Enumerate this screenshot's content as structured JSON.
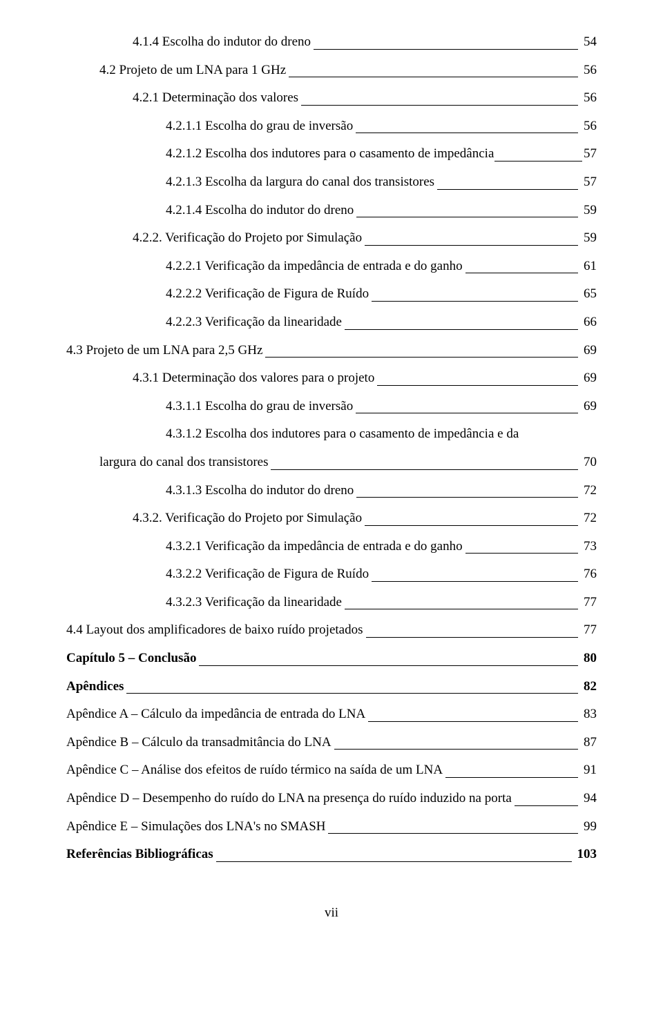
{
  "typography": {
    "font_family": "Times New Roman",
    "font_size_pt": 12,
    "line_color": "#000000",
    "text_color": "#000000",
    "background_color": "#ffffff"
  },
  "footer": {
    "page_number": "vii"
  },
  "entries": [
    {
      "label": "4.1.4 Escolha do indutor do dreno",
      "page": "54",
      "indent": 3,
      "bold": false
    },
    {
      "label": "4.2 Projeto de um LNA para 1 GHz",
      "page": "56",
      "indent": 2,
      "bold": false
    },
    {
      "label": "4.2.1 Determinação dos valores",
      "page": "56",
      "indent": 3,
      "bold": false
    },
    {
      "label": "4.2.1.1 Escolha do grau de inversão",
      "page": "56",
      "indent": 4,
      "bold": false
    },
    {
      "label": "4.2.1.2 Escolha dos indutores para o casamento de impedância",
      "page": "57",
      "indent": 4,
      "bold": false,
      "tight": true
    },
    {
      "label": "4.2.1.3 Escolha da largura do canal dos transistores",
      "page": "57",
      "indent": 4,
      "bold": false
    },
    {
      "label": "4.2.1.4 Escolha do indutor do dreno",
      "page": "59",
      "indent": 4,
      "bold": false
    },
    {
      "label": "4.2.2. Verificação do Projeto por Simulação",
      "page": "59",
      "indent": 3,
      "bold": false
    },
    {
      "label": "4.2.2.1 Verificação da impedância de entrada e do ganho",
      "page": "61",
      "indent": 4,
      "bold": false
    },
    {
      "label": "4.2.2.2 Verificação de Figura de Ruído",
      "page": "65",
      "indent": 4,
      "bold": false
    },
    {
      "label": "4.2.2.3 Verificação da linearidade",
      "page": "66",
      "indent": 4,
      "bold": false
    },
    {
      "label": "4.3 Projeto de um LNA para 2,5 GHz",
      "page": "69",
      "indent": 1,
      "bold": false
    },
    {
      "label": "4.3.1 Determinação dos valores para o projeto",
      "page": "69",
      "indent": 3,
      "bold": false
    },
    {
      "label": "4.3.1.1 Escolha do grau de inversão",
      "page": "69",
      "indent": 4,
      "bold": false
    },
    {
      "label_pre": "4.3.1.2 Escolha dos indutores para o casamento de impedância e da",
      "label": "largura do canal dos transistores",
      "page": "70",
      "indent": 4,
      "indent_cont": 2,
      "wrap": true,
      "bold": false
    },
    {
      "label": "4.3.1.3 Escolha do indutor do dreno",
      "page": "72",
      "indent": 4,
      "bold": false
    },
    {
      "label": "4.3.2. Verificação do Projeto por Simulação",
      "page": "72",
      "indent": 3,
      "bold": false
    },
    {
      "label": "4.3.2.1 Verificação da impedância de entrada e do ganho",
      "page": "73",
      "indent": 4,
      "bold": false
    },
    {
      "label": "4.3.2.2 Verificação de Figura de Ruído",
      "page": "76",
      "indent": 4,
      "bold": false
    },
    {
      "label": "4.3.2.3 Verificação da linearidade",
      "page": "77",
      "indent": 4,
      "bold": false
    },
    {
      "label": "4.4 Layout dos amplificadores de baixo ruído projetados",
      "page": "77",
      "indent": 1,
      "bold": false
    },
    {
      "label": "Capítulo 5 – Conclusão",
      "page": "80",
      "indent": 0,
      "bold": true
    },
    {
      "label": "Apêndices",
      "page": "82",
      "indent": 0,
      "bold": true
    },
    {
      "label": "Apêndice A – Cálculo da impedância de entrada do LNA",
      "page": "83",
      "indent": 0,
      "bold": false
    },
    {
      "label": "Apêndice B – Cálculo da transadmitância do LNA",
      "page": "87",
      "indent": 0,
      "bold": false
    },
    {
      "label": "Apêndice C – Análise dos efeitos de ruído térmico na saída de um LNA",
      "page": "91",
      "indent": 0,
      "bold": false
    },
    {
      "label": "Apêndice D – Desempenho do ruído do LNA na presença do ruído induzido na porta",
      "page": "94",
      "indent": 0,
      "bold": false
    },
    {
      "label": "Apêndice E – Simulações dos LNA's no SMASH",
      "page": "99",
      "indent": 0,
      "bold": false
    },
    {
      "label": "Referências Bibliográficas",
      "page": "103",
      "indent": 0,
      "bold": true
    }
  ]
}
